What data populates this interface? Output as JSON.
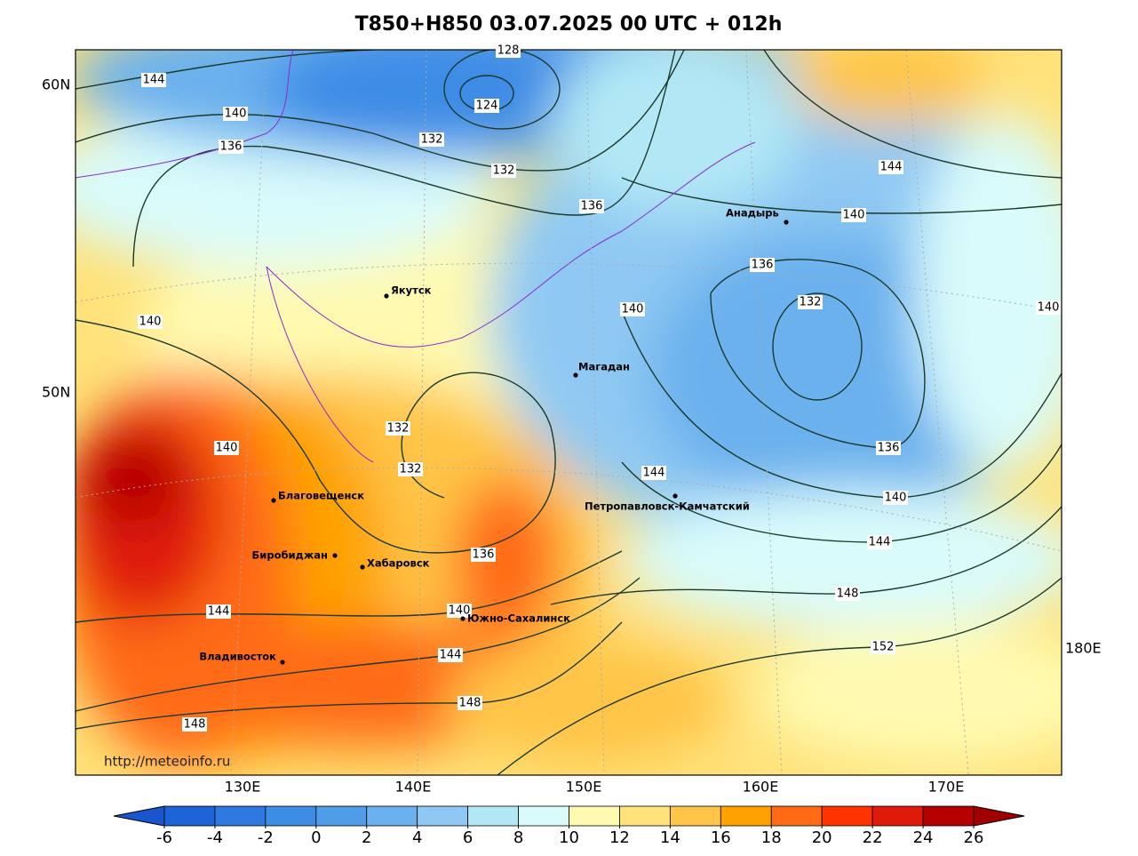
{
  "header": {
    "title": "T850+H850 03.07.2025 00 UTC + 012h"
  },
  "map": {
    "lat_labels": [
      "60N",
      "50N"
    ],
    "lon_labels": [
      "130E",
      "140E",
      "150E",
      "160E",
      "170E",
      "180E"
    ],
    "credit": "http://meteoinfo.ru",
    "cities": [
      "Якутск",
      "Магадан",
      "Анадырь",
      "Благовещенск",
      "Биробиджан",
      "Хабаровск",
      "Петропавловск-Камчатский",
      "Южно-Сахалинск",
      "Владивосток"
    ],
    "contour_labels": [
      144,
      140,
      136,
      128,
      124,
      132,
      132,
      136,
      144,
      140,
      136,
      132,
      140,
      140,
      140,
      132,
      132,
      140,
      144,
      136,
      140,
      144,
      148,
      152,
      136,
      140,
      144,
      144,
      148,
      148
    ]
  },
  "colorbar": {
    "levels": [
      -6,
      -4,
      -2,
      0,
      2,
      4,
      6,
      8,
      10,
      12,
      14,
      16,
      18,
      20,
      22,
      24,
      26
    ],
    "colors": [
      "#1f63d8",
      "#2f78e0",
      "#3d8ce6",
      "#4f9de9",
      "#6bb1ee",
      "#8fc9f3",
      "#b2e8f5",
      "#d9fbfb",
      "#fffab0",
      "#ffe27a",
      "#ffc547",
      "#ffa200",
      "#ff6a12",
      "#ff3300",
      "#e01a0a",
      "#b50000"
    ],
    "under_color": "#1a55d0",
    "over_color": "#a00000"
  }
}
